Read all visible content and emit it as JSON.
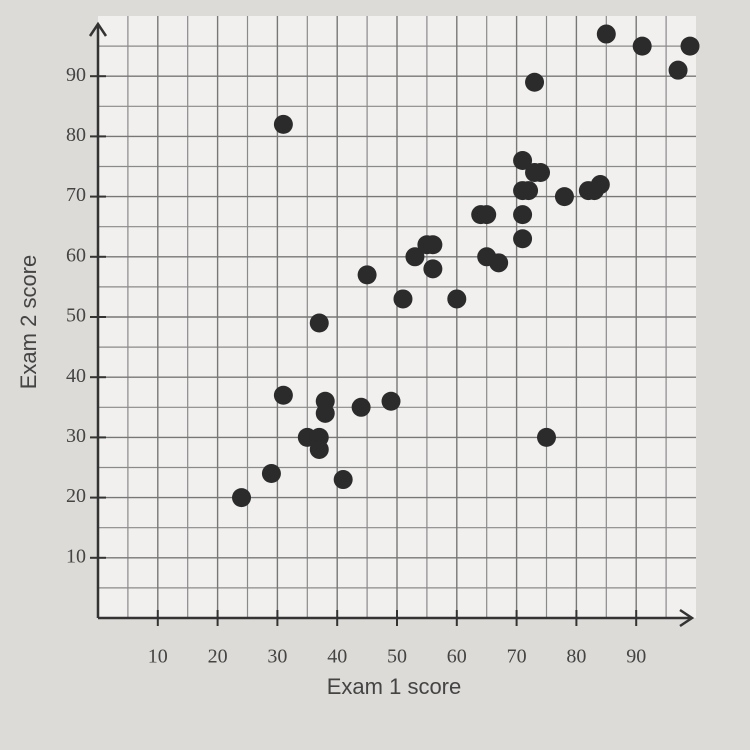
{
  "chart_data": {
    "type": "scatter",
    "x_label": "Exam 1 score",
    "y_label": "Exam 2 score",
    "xlim": [
      0,
      100
    ],
    "ylim": [
      0,
      100
    ],
    "xticks": [
      10,
      20,
      30,
      40,
      50,
      60,
      70,
      80,
      90
    ],
    "yticks": [
      10,
      20,
      30,
      40,
      50,
      60,
      70,
      80,
      90
    ],
    "x_minor_ticks": [
      5,
      15,
      25,
      35,
      45,
      55,
      65,
      75,
      85,
      95
    ],
    "y_minor_ticks": [
      5,
      15,
      25,
      35,
      45,
      55,
      65,
      75,
      85,
      95
    ],
    "grid": true,
    "color": "#2b2b2b",
    "x": [
      24,
      29,
      31,
      31,
      35,
      37,
      37,
      37,
      38,
      38,
      41,
      44,
      45,
      49,
      51,
      53,
      55,
      56,
      56,
      60,
      64,
      65,
      65,
      67,
      71,
      71,
      71,
      71,
      72,
      73,
      73,
      74,
      75,
      78,
      82,
      83,
      84,
      85,
      91,
      97,
      99
    ],
    "values": [
      20,
      24,
      37,
      82,
      30,
      30,
      28,
      49,
      36,
      34,
      23,
      35,
      57,
      36,
      53,
      60,
      62,
      62,
      58,
      53,
      67,
      67,
      60,
      59,
      63,
      67,
      71,
      76,
      71,
      89,
      74,
      74,
      30,
      70,
      71,
      71,
      72,
      97,
      95,
      91,
      95
    ]
  }
}
